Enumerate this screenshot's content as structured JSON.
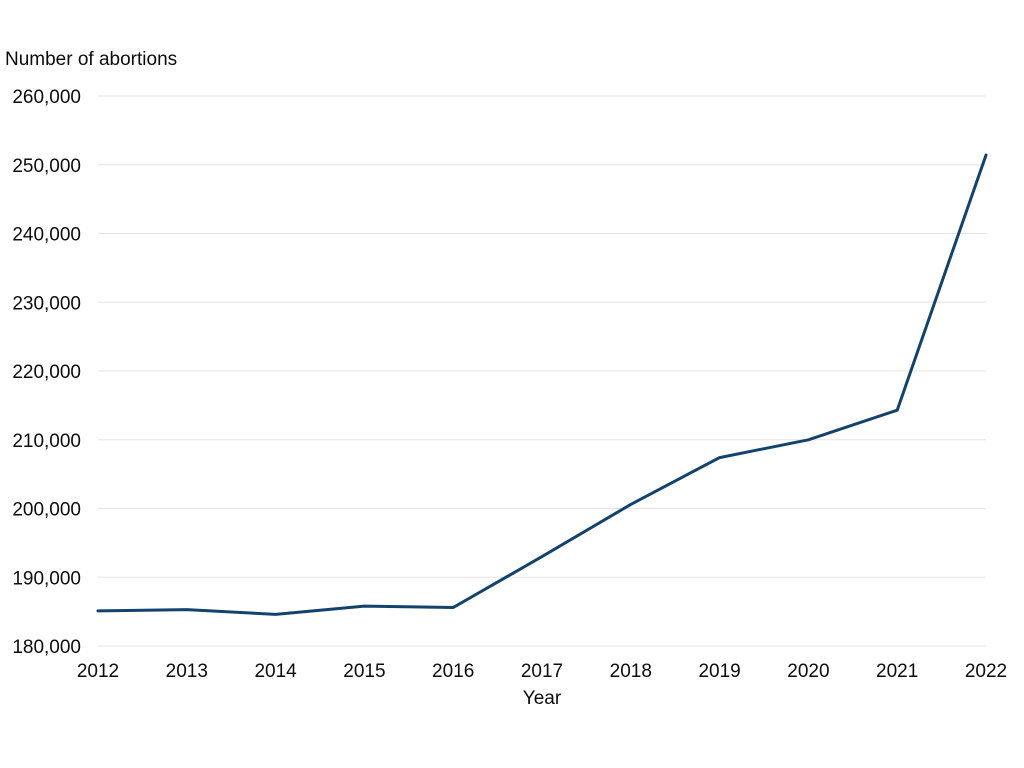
{
  "chart_data": {
    "type": "line",
    "title": "",
    "ylabel": "Number of abortions",
    "xlabel": "Year",
    "x": [
      "2012",
      "2013",
      "2014",
      "2015",
      "2016",
      "2017",
      "2018",
      "2019",
      "2020",
      "2021",
      "2022"
    ],
    "series": [
      {
        "values": [
          185100,
          185300,
          184600,
          185800,
          185600,
          193000,
          200600,
          207400,
          210000,
          214300,
          251400
        ],
        "color": "#12436d"
      }
    ],
    "ylim": [
      180000,
      260000
    ],
    "yticks": [
      180000,
      190000,
      200000,
      210000,
      220000,
      230000,
      240000,
      250000,
      260000
    ],
    "ytick_labels": [
      "180,000",
      "190,000",
      "200,000",
      "210,000",
      "220,000",
      "230,000",
      "240,000",
      "250,000",
      "260,000"
    ],
    "grid": true,
    "legend": "none"
  }
}
